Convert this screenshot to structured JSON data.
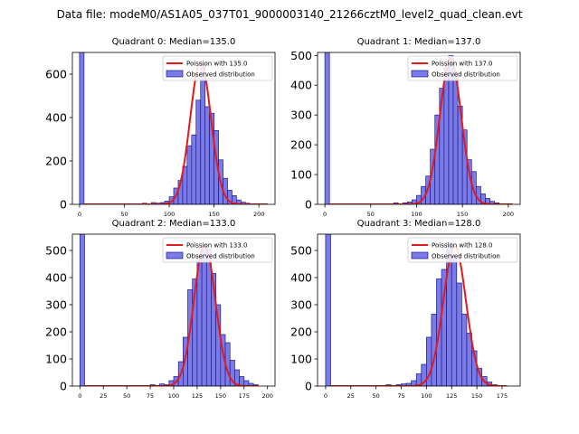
{
  "figure_title": "Data file: modeM0/AS1A05_037T01_9000003140_21266cztM0_level2_quad_clean.evt",
  "colors": {
    "hist_fill": "#7b7be8",
    "hist_edge": "#1a1a8c",
    "fit_line": "#e31a1c"
  },
  "chart_data": [
    {
      "type": "bar+line",
      "title": "Quadrant 0: Median=135.0",
      "median": 135.0,
      "bin_width": 5,
      "xlim": [
        -8,
        218
      ],
      "ylim": [
        0,
        700
      ],
      "xticks": [
        0,
        50,
        100,
        150,
        200
      ],
      "yticks": [
        0,
        200,
        400,
        600
      ],
      "legend": [
        "Poission with 135.0",
        "Observed distribution"
      ],
      "bins": [
        [
          0,
          700
        ],
        [
          70,
          5
        ],
        [
          80,
          8
        ],
        [
          85,
          5
        ],
        [
          90,
          8
        ],
        [
          95,
          15
        ],
        [
          100,
          35
        ],
        [
          105,
          75
        ],
        [
          110,
          110
        ],
        [
          115,
          175
        ],
        [
          120,
          270
        ],
        [
          125,
          320
        ],
        [
          130,
          480
        ],
        [
          135,
          640
        ],
        [
          140,
          450
        ],
        [
          145,
          420
        ],
        [
          150,
          340
        ],
        [
          155,
          205
        ],
        [
          160,
          120
        ],
        [
          165,
          65
        ],
        [
          170,
          40
        ],
        [
          175,
          20
        ],
        [
          180,
          10
        ],
        [
          185,
          5
        ]
      ],
      "curve": {
        "mean": 135.0,
        "peak": 655,
        "sigma": 11.6,
        "x": [
          5,
          210
        ]
      }
    },
    {
      "type": "bar+line",
      "title": "Quadrant 1: Median=137.0",
      "median": 137.0,
      "bin_width": 5,
      "xlim": [
        -8,
        213
      ],
      "ylim": [
        0,
        510
      ],
      "xticks": [
        0,
        50,
        100,
        150,
        200
      ],
      "yticks": [
        0,
        100,
        200,
        300,
        400,
        500
      ],
      "legend": [
        "Poission with 137.0",
        "Observed distribution"
      ],
      "bins": [
        [
          0,
          510
        ],
        [
          75,
          5
        ],
        [
          85,
          5
        ],
        [
          90,
          8
        ],
        [
          95,
          15
        ],
        [
          100,
          30
        ],
        [
          105,
          60
        ],
        [
          110,
          95
        ],
        [
          115,
          185
        ],
        [
          120,
          300
        ],
        [
          125,
          390
        ],
        [
          130,
          460
        ],
        [
          135,
          500
        ],
        [
          140,
          445
        ],
        [
          145,
          330
        ],
        [
          150,
          250
        ],
        [
          155,
          150
        ],
        [
          160,
          110
        ],
        [
          165,
          60
        ],
        [
          170,
          35
        ],
        [
          175,
          20
        ],
        [
          180,
          10
        ],
        [
          185,
          5
        ]
      ],
      "curve": {
        "mean": 137.0,
        "peak": 490,
        "sigma": 11.7,
        "x": [
          5,
          205
        ]
      }
    },
    {
      "type": "bar+line",
      "title": "Quadrant 2: Median=133.0",
      "median": 133.0,
      "bin_width": 5,
      "xlim": [
        -8,
        208
      ],
      "ylim": [
        0,
        560
      ],
      "xticks": [
        0,
        25,
        50,
        75,
        100,
        125,
        150,
        175,
        200
      ],
      "yticks": [
        0,
        100,
        200,
        300,
        400,
        500
      ],
      "legend": [
        "Poission with 133.0",
        "Observed distribution"
      ],
      "bins": [
        [
          0,
          560
        ],
        [
          75,
          5
        ],
        [
          85,
          8
        ],
        [
          90,
          5
        ],
        [
          95,
          20
        ],
        [
          100,
          35
        ],
        [
          105,
          90
        ],
        [
          110,
          180
        ],
        [
          115,
          355
        ],
        [
          120,
          395
        ],
        [
          125,
          480
        ],
        [
          130,
          515
        ],
        [
          135,
          505
        ],
        [
          140,
          415
        ],
        [
          145,
          300
        ],
        [
          150,
          190
        ],
        [
          155,
          160
        ],
        [
          160,
          95
        ],
        [
          165,
          60
        ],
        [
          170,
          35
        ],
        [
          175,
          20
        ],
        [
          180,
          10
        ],
        [
          185,
          5
        ]
      ],
      "curve": {
        "mean": 133.0,
        "peak": 520,
        "sigma": 11.5,
        "x": [
          5,
          190
        ]
      }
    },
    {
      "type": "bar+line",
      "title": "Quadrant 3: Median=128.0",
      "median": 128.0,
      "bin_width": 5,
      "xlim": [
        -8,
        193
      ],
      "ylim": [
        0,
        560
      ],
      "xticks": [
        0,
        25,
        50,
        75,
        100,
        125,
        150,
        175
      ],
      "yticks": [
        0,
        100,
        200,
        300,
        400,
        500
      ],
      "legend": [
        "Poission with 128.0",
        "Observed distribution"
      ],
      "bins": [
        [
          0,
          560
        ],
        [
          60,
          5
        ],
        [
          70,
          5
        ],
        [
          75,
          8
        ],
        [
          80,
          10
        ],
        [
          85,
          20
        ],
        [
          90,
          45
        ],
        [
          95,
          80
        ],
        [
          100,
          180
        ],
        [
          105,
          265
        ],
        [
          110,
          395
        ],
        [
          115,
          430
        ],
        [
          120,
          530
        ],
        [
          125,
          480
        ],
        [
          130,
          380
        ],
        [
          135,
          265
        ],
        [
          140,
          195
        ],
        [
          145,
          130
        ],
        [
          150,
          65
        ],
        [
          155,
          35
        ],
        [
          160,
          15
        ],
        [
          165,
          5
        ]
      ],
      "curve": {
        "mean": 128.0,
        "peak": 515,
        "sigma": 11.3,
        "x": [
          5,
          180
        ]
      }
    }
  ]
}
